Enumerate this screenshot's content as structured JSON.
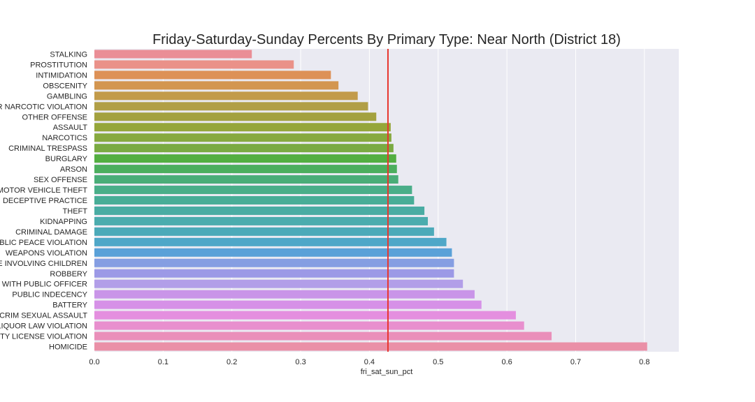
{
  "chart_data": {
    "type": "bar",
    "orientation": "horizontal",
    "title": "Friday-Saturday-Sunday Percents By Primary Type: Near North (District 18)",
    "xlabel": "fri_sat_sun_pct",
    "ylabel": "",
    "xlim": [
      0,
      0.85
    ],
    "x_ticks": [
      "0.0",
      "0.1",
      "0.2",
      "0.3",
      "0.4",
      "0.5",
      "0.6",
      "0.7",
      "0.8"
    ],
    "grid": true,
    "reference_line": {
      "value": 0.427,
      "color": "#e8362e"
    },
    "categories": [
      "STALKING",
      "PROSTITUTION",
      "INTIMIDATION",
      "OBSCENITY",
      "GAMBLING",
      "OTHER NARCOTIC VIOLATION",
      "OTHER OFFENSE",
      "ASSAULT",
      "NARCOTICS",
      "CRIMINAL TRESPASS",
      "BURGLARY",
      "ARSON",
      "SEX OFFENSE",
      "MOTOR VEHICLE THEFT",
      "DECEPTIVE PRACTICE",
      "THEFT",
      "KIDNAPPING",
      "CRIMINAL DAMAGE",
      "PUBLIC PEACE VIOLATION",
      "WEAPONS VIOLATION",
      "OFFENSE INVOLVING CHILDREN",
      "ROBBERY",
      "INTERFERENCE WITH PUBLIC OFFICER",
      "PUBLIC INDECENCY",
      "BATTERY",
      "CRIM SEXUAL ASSAULT",
      "LIQUOR LAW VIOLATION",
      "NON-MORTALITY LICENSE VIOLATION",
      "HOMICIDE"
    ],
    "values": [
      0.229,
      0.29,
      0.344,
      0.355,
      0.383,
      0.398,
      0.41,
      0.431,
      0.432,
      0.435,
      0.439,
      0.44,
      0.442,
      0.462,
      0.465,
      0.48,
      0.485,
      0.494,
      0.512,
      0.52,
      0.523,
      0.523,
      0.536,
      0.553,
      0.563,
      0.613,
      0.625,
      0.665,
      0.804
    ],
    "colors": [
      "#ea8e96",
      "#ea9189",
      "#dd9157",
      "#d39650",
      "#c29b4a",
      "#b19f46",
      "#a3a13f",
      "#95a63a",
      "#87a93f",
      "#7aaa42",
      "#53ae41",
      "#4cae5e",
      "#4aad78",
      "#4aae89",
      "#48ad97",
      "#49aca3",
      "#4bacae",
      "#4caab9",
      "#4fa7c8",
      "#5aa1d8",
      "#859ee2",
      "#9c99e6",
      "#b29ee8",
      "#c995e8",
      "#d691e7",
      "#e48fdf",
      "#e88fce",
      "#ea8fba",
      "#ea90a7"
    ]
  }
}
